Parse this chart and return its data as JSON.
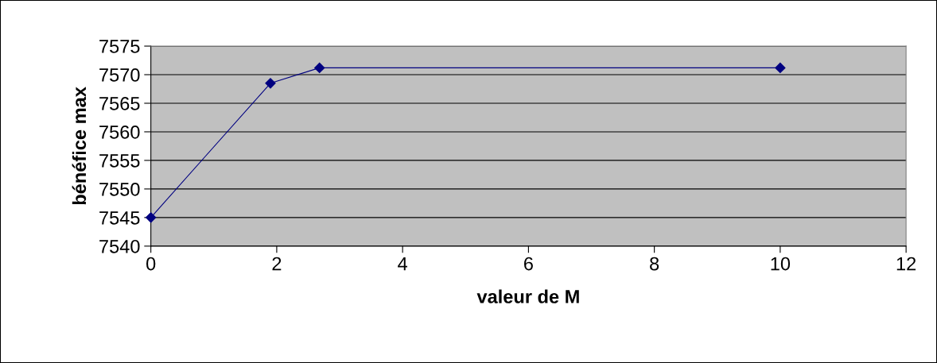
{
  "chart_data": {
    "type": "line",
    "xlabel": "valeur de M",
    "ylabel": "bénéfice max",
    "x": [
      0,
      1.9,
      2.68,
      10
    ],
    "series": [
      {
        "color": "#000080",
        "values": [
          7545,
          7568.5,
          7571.2,
          7571.2
        ]
      }
    ],
    "xlim": [
      0,
      12
    ],
    "xticks": [
      0,
      2,
      4,
      6,
      8,
      10,
      12
    ],
    "ylim": [
      7540,
      7575
    ],
    "yticks": [
      7540,
      7545,
      7550,
      7555,
      7560,
      7565,
      7570,
      7575
    ],
    "grid": "y",
    "marker": "diamond",
    "line_style": "solid",
    "legend": false
  }
}
